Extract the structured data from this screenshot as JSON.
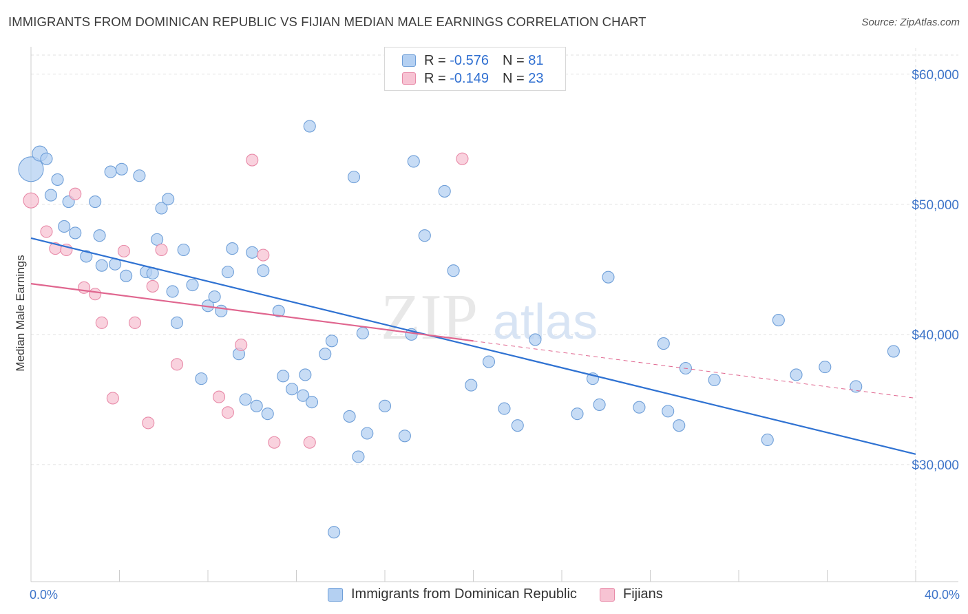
{
  "title": "IMMIGRANTS FROM DOMINICAN REPUBLIC VS FIJIAN MEDIAN MALE EARNINGS CORRELATION CHART",
  "source": "Source: ZipAtlas.com",
  "watermark": {
    "zip": "ZIP",
    "atlas": "atlas"
  },
  "legend": {
    "r_label": "R =",
    "n_label": "N =",
    "rows": [
      {
        "r": "-0.576",
        "n": "81",
        "color": "#a8c8f0"
      },
      {
        "r": "-0.149",
        "n": "23",
        "color": "#f5b8cb"
      }
    ]
  },
  "bottom_legend": [
    "Immigrants from Dominican Republic",
    "Fijians"
  ],
  "colors": {
    "blue_fill": "#b4d0f2",
    "blue_stroke": "#6f9fd8",
    "blue_line": "#2f72d2",
    "pink_fill": "#f7c3d3",
    "pink_stroke": "#e88aa8",
    "pink_line": "#e0668f",
    "tick_label": "#3d74c9"
  },
  "chart_data": {
    "type": "scatter",
    "title": "IMMIGRANTS FROM DOMINICAN REPUBLIC VS FIJIAN MEDIAN MALE EARNINGS CORRELATION CHART",
    "xlabel": "",
    "ylabel": "Median Male Earnings",
    "xlim": [
      0,
      40
    ],
    "ylim": [
      21000,
      62000
    ],
    "x_tick_labels": [
      "0.0%",
      "40.0%"
    ],
    "y_ticks": [
      30000,
      40000,
      50000,
      60000
    ],
    "y_tick_labels": [
      "$30,000",
      "$40,000",
      "$50,000",
      "$60,000"
    ],
    "grid": true,
    "legend_position": "top-center",
    "series": [
      {
        "name": "Immigrants from Dominican Republic",
        "r": -0.576,
        "n": 81,
        "trend": {
          "x": [
            0,
            40
          ],
          "y": [
            47400,
            30800
          ]
        },
        "points": [
          [
            0.0,
            52700
          ],
          [
            0.4,
            53900
          ],
          [
            0.7,
            53500
          ],
          [
            0.9,
            50700
          ],
          [
            1.2,
            51900
          ],
          [
            1.5,
            48300
          ],
          [
            1.7,
            50200
          ],
          [
            2.0,
            47800
          ],
          [
            2.5,
            46000
          ],
          [
            2.9,
            50200
          ],
          [
            3.1,
            47600
          ],
          [
            3.2,
            45300
          ],
          [
            3.6,
            52500
          ],
          [
            3.8,
            45400
          ],
          [
            4.1,
            52700
          ],
          [
            4.3,
            44500
          ],
          [
            4.9,
            52200
          ],
          [
            5.2,
            44800
          ],
          [
            5.5,
            44700
          ],
          [
            5.7,
            47300
          ],
          [
            5.9,
            49700
          ],
          [
            6.2,
            50400
          ],
          [
            6.4,
            43300
          ],
          [
            6.6,
            40900
          ],
          [
            6.9,
            46500
          ],
          [
            7.3,
            43800
          ],
          [
            7.7,
            36600
          ],
          [
            8.0,
            42200
          ],
          [
            8.3,
            42900
          ],
          [
            8.6,
            41800
          ],
          [
            8.9,
            44800
          ],
          [
            9.1,
            46600
          ],
          [
            9.4,
            38500
          ],
          [
            9.7,
            35000
          ],
          [
            10.0,
            46300
          ],
          [
            10.2,
            34500
          ],
          [
            10.5,
            44900
          ],
          [
            10.7,
            33900
          ],
          [
            11.2,
            41800
          ],
          [
            11.4,
            36800
          ],
          [
            11.8,
            35800
          ],
          [
            12.3,
            35300
          ],
          [
            12.4,
            36900
          ],
          [
            12.7,
            34800
          ],
          [
            12.6,
            56000
          ],
          [
            13.3,
            38500
          ],
          [
            13.6,
            39500
          ],
          [
            13.7,
            24800
          ],
          [
            14.4,
            33700
          ],
          [
            14.6,
            52100
          ],
          [
            14.8,
            30600
          ],
          [
            15.0,
            40100
          ],
          [
            15.2,
            32400
          ],
          [
            16.0,
            34500
          ],
          [
            16.9,
            32200
          ],
          [
            17.3,
            53300
          ],
          [
            17.2,
            40000
          ],
          [
            17.8,
            47600
          ],
          [
            18.7,
            51000
          ],
          [
            19.1,
            44900
          ],
          [
            19.9,
            36100
          ],
          [
            20.7,
            37900
          ],
          [
            21.4,
            34300
          ],
          [
            22.0,
            33000
          ],
          [
            22.8,
            39600
          ],
          [
            24.7,
            33900
          ],
          [
            25.4,
            36600
          ],
          [
            25.7,
            34600
          ],
          [
            26.1,
            44400
          ],
          [
            27.5,
            34400
          ],
          [
            28.6,
            39300
          ],
          [
            28.8,
            34100
          ],
          [
            29.3,
            33000
          ],
          [
            29.6,
            37400
          ],
          [
            30.9,
            36500
          ],
          [
            33.3,
            31900
          ],
          [
            33.8,
            41100
          ],
          [
            34.6,
            36900
          ],
          [
            35.9,
            37500
          ],
          [
            37.3,
            36000
          ],
          [
            39.0,
            38700
          ]
        ]
      },
      {
        "name": "Fijians",
        "r": -0.149,
        "n": 23,
        "trend": {
          "x": [
            0,
            20
          ],
          "y": [
            43900,
            39500
          ]
        },
        "trend_dashed": {
          "x": [
            20,
            40
          ],
          "y": [
            39500,
            35100
          ]
        },
        "points": [
          [
            0.0,
            50300
          ],
          [
            0.7,
            47900
          ],
          [
            1.1,
            46600
          ],
          [
            1.6,
            46500
          ],
          [
            2.0,
            50800
          ],
          [
            2.4,
            43600
          ],
          [
            2.9,
            43100
          ],
          [
            3.2,
            40900
          ],
          [
            3.7,
            35100
          ],
          [
            4.2,
            46400
          ],
          [
            4.7,
            40900
          ],
          [
            5.3,
            33200
          ],
          [
            5.5,
            43700
          ],
          [
            5.9,
            46500
          ],
          [
            6.6,
            37700
          ],
          [
            8.5,
            35200
          ],
          [
            8.9,
            34000
          ],
          [
            9.5,
            39200
          ],
          [
            10.0,
            53400
          ],
          [
            10.5,
            46100
          ],
          [
            11.0,
            31700
          ],
          [
            12.6,
            31700
          ],
          [
            19.5,
            53500
          ]
        ]
      }
    ]
  }
}
